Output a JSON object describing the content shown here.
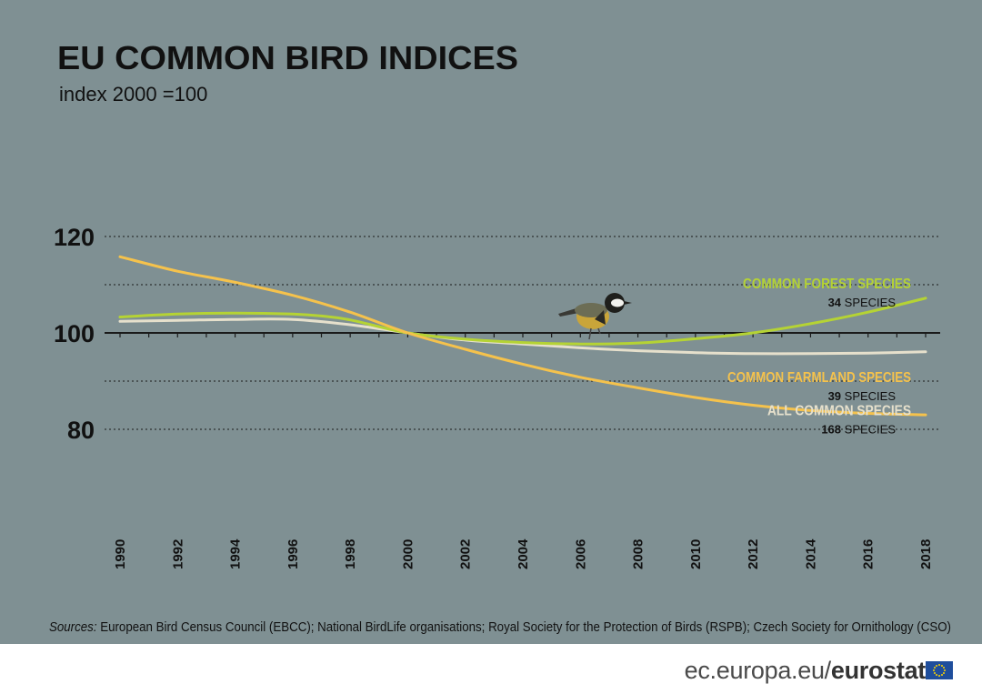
{
  "title": "EU COMMON BIRD INDICES",
  "subtitle": "index 2000 =100",
  "sources_label": "Sources:",
  "sources_text": "European Bird Census Council (EBCC); National BirdLife organisations; Royal Society for the Protection of Birds (RSPB); Czech Society for Ornithology (CSO)",
  "footer": {
    "domain": "ec.europa.eu/",
    "brand": "eurostat"
  },
  "colors": {
    "background": "#7f9093",
    "forest": "#b5d334",
    "all": "#e6e0cc",
    "farmland": "#f5c24c"
  },
  "chart_data": {
    "type": "line",
    "title": "EU COMMON BIRD INDICES",
    "ylabel": "index 2000 =100",
    "ylim": [
      80,
      120
    ],
    "yticks": [
      80,
      100,
      120
    ],
    "xticks": [
      1990,
      1992,
      1994,
      1996,
      1998,
      2000,
      2002,
      2004,
      2006,
      2008,
      2010,
      2012,
      2014,
      2016,
      2018
    ],
    "grid": true,
    "series": [
      {
        "name": "COMMON FOREST SPECIES",
        "count_num": "34",
        "count_word": "SPECIES",
        "color_key": "forest",
        "x": [
          1990,
          1992,
          1994,
          1996,
          1997,
          1998,
          2000,
          2002,
          2004,
          2006,
          2008,
          2010,
          2012,
          2014,
          2016,
          2018
        ],
        "y": [
          103.3,
          103.9,
          104.1,
          103.9,
          103.5,
          102.7,
          100.0,
          98.7,
          98.0,
          97.7,
          97.9,
          98.8,
          100.0,
          101.9,
          104.3,
          107.2
        ]
      },
      {
        "name": "ALL COMMON SPECIES",
        "count_num": "168",
        "count_word": "SPECIES",
        "color_key": "all",
        "x": [
          1990,
          1992,
          1994,
          1996,
          1998,
          2000,
          2002,
          2004,
          2006,
          2008,
          2010,
          2012,
          2014,
          2016,
          2018
        ],
        "y": [
          102.4,
          102.6,
          102.8,
          102.8,
          101.7,
          100.0,
          98.5,
          97.7,
          96.9,
          96.3,
          95.9,
          95.7,
          95.7,
          95.8,
          96.1
        ]
      },
      {
        "name": "COMMON FARMLAND SPECIES",
        "count_num": "39",
        "count_word": "SPECIES",
        "color_key": "farmland",
        "x": [
          1990,
          1992,
          1994,
          1996,
          1998,
          2000,
          2002,
          2004,
          2006,
          2008,
          2010,
          2012,
          2014,
          2016,
          2018
        ],
        "y": [
          115.8,
          112.8,
          110.5,
          107.8,
          104.3,
          100.0,
          96.6,
          93.5,
          90.8,
          88.6,
          86.6,
          85.0,
          83.9,
          83.3,
          83.0
        ]
      }
    ]
  }
}
